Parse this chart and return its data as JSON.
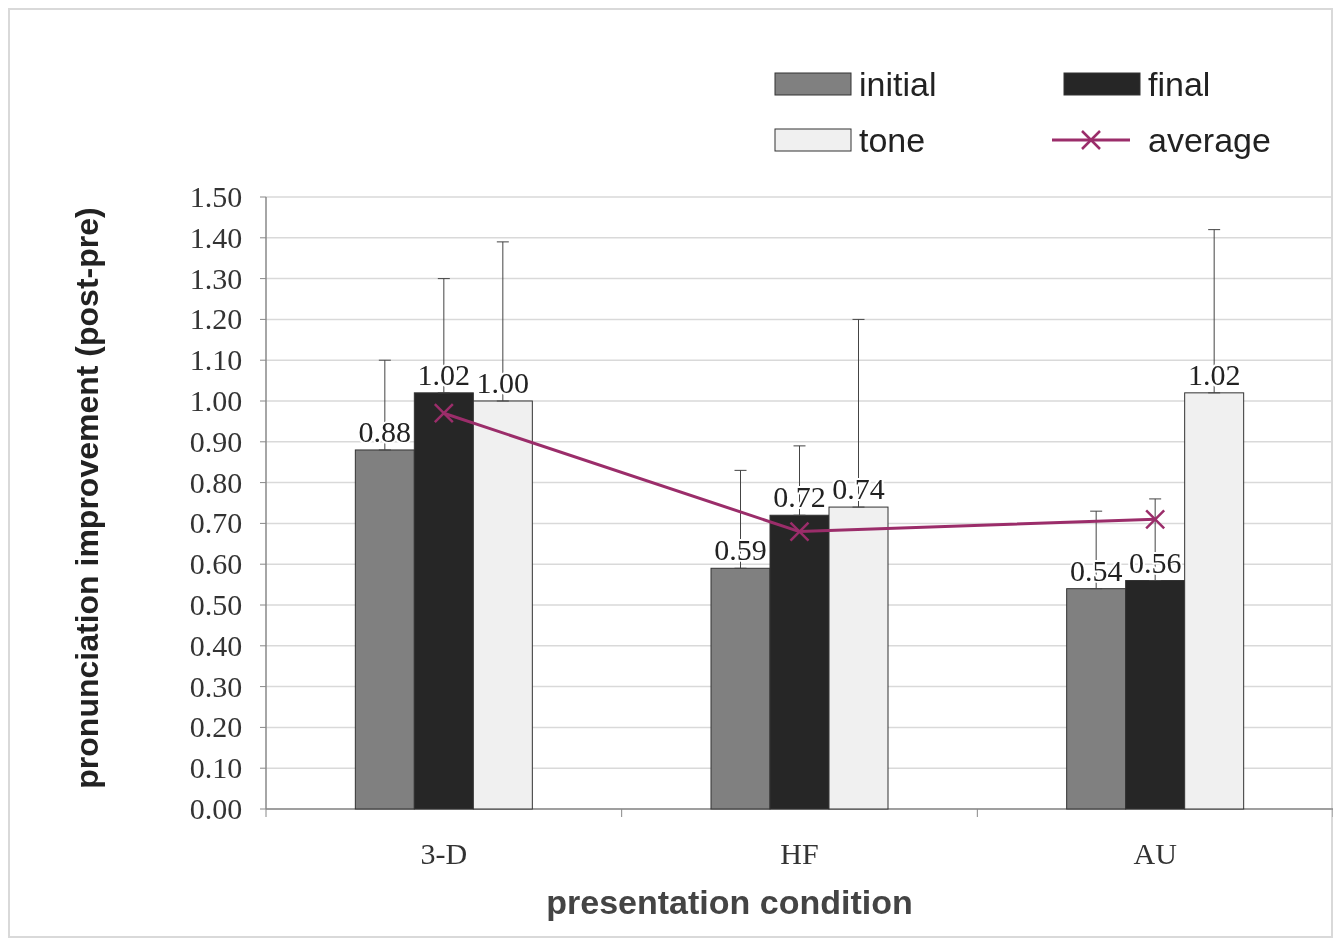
{
  "chart_data": {
    "type": "bar",
    "xlabel": "presentation condition",
    "ylabel": "pronunciation improvement (post-pre)",
    "categories": [
      "3-D",
      "HF",
      "AU"
    ],
    "series": [
      {
        "name": "initial",
        "color": "#808080",
        "values": [
          0.88,
          0.59,
          0.54
        ],
        "errors": [
          [
            0.88,
            1.1
          ],
          [
            0.59,
            0.83
          ],
          [
            0.54,
            0.73
          ]
        ],
        "value_labels": [
          "0.88",
          "0.59",
          "0.54"
        ]
      },
      {
        "name": "final",
        "color": "#262626",
        "values": [
          1.02,
          0.72,
          0.56
        ],
        "errors": [
          [
            1.02,
            1.3
          ],
          [
            0.72,
            0.89
          ],
          [
            0.56,
            0.76
          ]
        ],
        "value_labels": [
          "1.02",
          "0.72",
          "0.56"
        ]
      },
      {
        "name": "tone",
        "color": "#f0f0f0",
        "values": [
          1.0,
          0.74,
          1.02
        ],
        "errors": [
          [
            1.0,
            1.39
          ],
          [
            0.74,
            1.2
          ],
          [
            1.02,
            1.42
          ]
        ],
        "value_labels": [
          "1.00",
          "0.74",
          "1.02"
        ]
      },
      {
        "name": "average",
        "type": "line",
        "color": "#9b2d6a",
        "values": [
          0.97,
          0.68,
          0.71
        ],
        "marker": "cross"
      }
    ],
    "ylim": [
      0,
      1.5
    ],
    "yticks": [
      {
        "value": 0,
        "label": "0.00"
      },
      {
        "value": 0.1,
        "label": "0.10"
      },
      {
        "value": 0.2,
        "label": "0.20"
      },
      {
        "value": 0.3,
        "label": "0.30"
      },
      {
        "value": 0.4,
        "label": "0.40"
      },
      {
        "value": 0.5,
        "label": "0.50"
      },
      {
        "value": 0.6,
        "label": "0.60"
      },
      {
        "value": 0.7,
        "label": "0.70"
      },
      {
        "value": 0.8,
        "label": "0.80"
      },
      {
        "value": 0.9,
        "label": "0.90"
      },
      {
        "value": 1,
        "label": "1.00"
      },
      {
        "value": 1.1,
        "label": "1.10"
      },
      {
        "value": 1.2,
        "label": "1.20"
      },
      {
        "value": 1.3,
        "label": "1.30"
      },
      {
        "value": 1.4,
        "label": "1.40"
      },
      {
        "value": 1.5,
        "label": "1.50"
      }
    ],
    "grid": "y",
    "legend": "top right"
  }
}
